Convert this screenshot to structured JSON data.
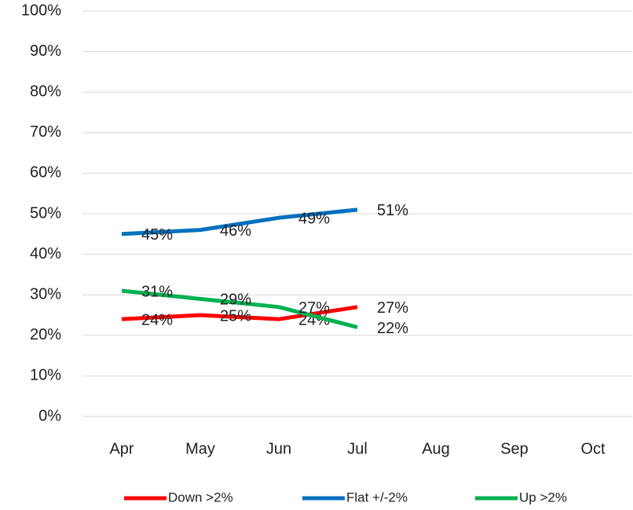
{
  "chart_data": {
    "type": "line",
    "categories": [
      "Apr",
      "May",
      "Jun",
      "Jul",
      "Aug",
      "Sep",
      "Oct"
    ],
    "series": [
      {
        "name": "Down >2%",
        "color": "#ff0000",
        "values": [
          24,
          25,
          24,
          27,
          null,
          null,
          null
        ],
        "value_labels": [
          "24%",
          "25%",
          "24%",
          "27%",
          null,
          null,
          null
        ]
      },
      {
        "name": "Flat +/-2%",
        "color": "#0070c0",
        "values": [
          45,
          46,
          49,
          51,
          null,
          null,
          null
        ],
        "value_labels": [
          "45%",
          "46%",
          "49%",
          "51%",
          null,
          null,
          null
        ]
      },
      {
        "name": "Up >2%",
        "color": "#00b050",
        "values": [
          31,
          29,
          27,
          22,
          null,
          null,
          null
        ],
        "value_labels": [
          "31%",
          "29%",
          "27%",
          "22%",
          null,
          null,
          null
        ]
      }
    ],
    "ylim": [
      0,
      100
    ],
    "yticks": [
      {
        "value": 0,
        "label": "0%"
      },
      {
        "value": 10,
        "label": "10%"
      },
      {
        "value": 20,
        "label": "20%"
      },
      {
        "value": 30,
        "label": "30%"
      },
      {
        "value": 40,
        "label": "40%"
      },
      {
        "value": 50,
        "label": "50%"
      },
      {
        "value": 60,
        "label": "60%"
      },
      {
        "value": 70,
        "label": "70%"
      },
      {
        "value": 80,
        "label": "80%"
      },
      {
        "value": 90,
        "label": "90%"
      },
      {
        "value": 100,
        "label": "100%"
      }
    ],
    "grid": true,
    "legend": "bottom"
  }
}
